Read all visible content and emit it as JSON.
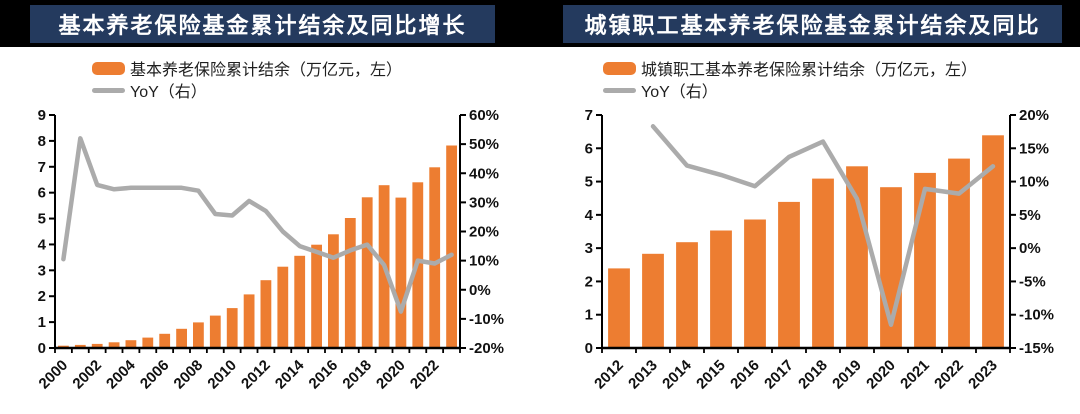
{
  "theme": {
    "page_bg": "#FFFFFF",
    "top_band_bg": "#000000",
    "title_bar_bg": "#243A5E",
    "title_text_color": "#FFFFFF",
    "bar_color": "#ED7D31",
    "line_color": "#ABABAB",
    "axis_color": "#000000"
  },
  "chart_data": [
    {
      "type": "bar-line-combo",
      "title": "基本养老保险基金累计结余及同比增长",
      "legend_position": "top",
      "grid": false,
      "categories": [
        2000,
        2001,
        2002,
        2003,
        2004,
        2005,
        2006,
        2007,
        2008,
        2009,
        2010,
        2011,
        2012,
        2013,
        2014,
        2015,
        2016,
        2017,
        2018,
        2019,
        2020,
        2021,
        2022,
        2023
      ],
      "x_label_every": 2,
      "left_axis": {
        "min": 0,
        "max": 9,
        "step": 1,
        "suffix": ""
      },
      "right_axis": {
        "min": -20,
        "max": 60,
        "step": 10,
        "suffix": "%"
      },
      "series": [
        {
          "name": "基本养老保险累计结余（万亿元，左）",
          "type": "bar",
          "axis": "left",
          "color": "#ED7D31",
          "values": [
            0.09,
            0.12,
            0.16,
            0.22,
            0.3,
            0.4,
            0.55,
            0.74,
            0.99,
            1.25,
            1.54,
            2.07,
            2.62,
            3.14,
            3.56,
            3.99,
            4.39,
            5.02,
            5.82,
            6.29,
            5.81,
            6.4,
            6.98,
            7.82
          ]
        },
        {
          "name": "YoY（右）",
          "type": "line",
          "axis": "right",
          "color": "#ABABAB",
          "values": [
            10.5,
            52,
            36,
            34.5,
            35,
            35,
            35,
            35,
            34,
            26,
            25.5,
            30.5,
            27,
            20,
            15,
            13,
            11,
            13.5,
            15.5,
            8.5,
            -7.5,
            10,
            9,
            12
          ]
        }
      ]
    },
    {
      "type": "bar-line-combo",
      "title": "城镇职工基本养老保险基金累计结余及同比",
      "legend_position": "top",
      "grid": false,
      "categories": [
        2012,
        2013,
        2014,
        2015,
        2016,
        2017,
        2018,
        2019,
        2020,
        2021,
        2022,
        2023
      ],
      "x_label_every": 1,
      "left_axis": {
        "min": 0,
        "max": 7,
        "step": 1,
        "suffix": ""
      },
      "right_axis": {
        "min": -15,
        "max": 20,
        "step": 5,
        "suffix": "%"
      },
      "series": [
        {
          "name": "城镇职工基本养老保险累计结余（万亿元，左）",
          "type": "bar",
          "axis": "left",
          "color": "#ED7D31",
          "values": [
            2.39,
            2.83,
            3.18,
            3.53,
            3.86,
            4.39,
            5.09,
            5.46,
            4.83,
            5.26,
            5.69,
            6.39
          ]
        },
        {
          "name": "YoY（右）",
          "type": "line",
          "axis": "right",
          "color": "#ABABAB",
          "values": [
            null,
            18.3,
            12.4,
            11.0,
            9.3,
            13.7,
            16.0,
            7.4,
            -11.5,
            8.9,
            8.2,
            12.3
          ]
        }
      ]
    }
  ]
}
